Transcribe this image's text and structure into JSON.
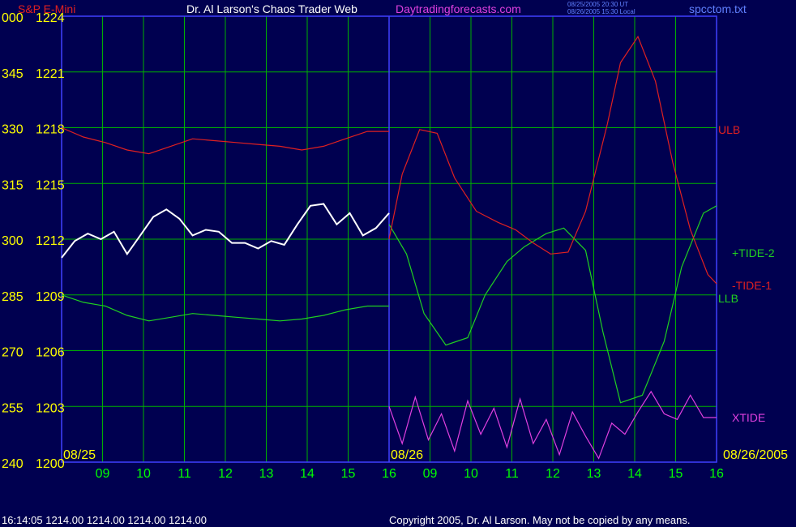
{
  "header": {
    "symbol": "S&P E-Mini",
    "title": "Dr. Al Larson's Chaos Trader Web",
    "site": "Daytradingforecasts.com",
    "time_ut": "08/25/2005 20:30 UT",
    "time_local": "08/26/2005 15:30 Local",
    "file": "spcctom.txt"
  },
  "footer": {
    "quote": "16:14:05  1214.00 1214.00 1214.00 1214.00",
    "copyright": "Copyright 2005, Dr. Al Larson. May not be copied by any means."
  },
  "colors": {
    "background": "#000050",
    "grid": "#00b000",
    "axis_text": "#ffff00",
    "date_text": "#ffff00",
    "hour_text": "#00ff00",
    "ulb": "#e02020",
    "llb": "#20d020",
    "tide_plus": "#20d020",
    "tide_minus": "#e02020",
    "xtide": "#e040e0",
    "price": "#ffffff",
    "separator": "#4040ff"
  },
  "chart_data": {
    "type": "line",
    "title": "S&P E-Mini",
    "y_left_ticks": [
      "000",
      "345",
      "330",
      "315",
      "300",
      "285",
      "270",
      "255",
      "240"
    ],
    "y_price_ticks": [
      "1224",
      "1221",
      "1218",
      "1215",
      "1212",
      "1209",
      "1206",
      "1203",
      "1200"
    ],
    "ylim": [
      1200,
      1224
    ],
    "x_dates": [
      "08/25",
      "08/26",
      "08/26/2005"
    ],
    "x_hours": [
      "09",
      "10",
      "11",
      "12",
      "13",
      "14",
      "15",
      "16",
      "09",
      "10",
      "11",
      "12",
      "13",
      "14",
      "15",
      "16"
    ],
    "x_range": [
      8.5,
      16
    ],
    "series": [
      {
        "name": "ULB",
        "x": [
          8.5,
          9.0,
          9.5,
          10.0,
          10.5,
          11.0,
          11.5,
          12.0,
          12.5,
          13.0,
          13.5,
          14.0,
          14.5,
          15.0,
          15.5,
          16.0
        ],
        "y": [
          1218.0,
          1217.5,
          1217.2,
          1216.8,
          1216.6,
          1217.0,
          1217.4,
          1217.3,
          1217.2,
          1217.1,
          1217.0,
          1216.8,
          1217.0,
          1217.4,
          1217.8,
          1217.8
        ]
      },
      {
        "name": "LLB",
        "x": [
          8.5,
          9.0,
          9.5,
          10.0,
          10.5,
          11.0,
          11.5,
          12.0,
          12.5,
          13.0,
          13.5,
          14.0,
          14.5,
          15.0,
          15.5,
          16.0
        ],
        "y": [
          1209.0,
          1208.6,
          1208.4,
          1207.9,
          1207.6,
          1207.8,
          1208.0,
          1207.9,
          1207.8,
          1207.7,
          1207.6,
          1207.7,
          1207.9,
          1208.2,
          1208.4,
          1208.4
        ]
      },
      {
        "name": "+TIDE-2",
        "x": [
          8.5,
          8.9,
          9.3,
          9.8,
          10.3,
          10.7,
          11.2,
          11.6,
          12.1,
          12.5,
          13.0,
          13.4,
          13.8,
          14.3,
          14.8,
          15.2,
          15.7,
          16.0
        ],
        "y": [
          1212.8,
          1211.2,
          1208.0,
          1206.3,
          1206.7,
          1209.0,
          1210.8,
          1211.6,
          1212.3,
          1212.6,
          1211.4,
          1207.0,
          1203.2,
          1203.6,
          1206.5,
          1210.5,
          1213.4,
          1213.8
        ]
      },
      {
        "name": "-TIDE-1",
        "x": [
          8.5,
          8.8,
          9.2,
          9.6,
          10.0,
          10.5,
          11.0,
          11.4,
          11.8,
          12.2,
          12.6,
          13.0,
          13.5,
          13.8,
          14.2,
          14.6,
          15.0,
          15.4,
          15.8,
          16.0
        ],
        "y": [
          1212.0,
          1215.5,
          1217.9,
          1217.7,
          1215.3,
          1213.5,
          1212.9,
          1212.5,
          1211.8,
          1211.2,
          1211.3,
          1213.5,
          1218.2,
          1221.5,
          1222.9,
          1220.5,
          1216.1,
          1212.5,
          1210.1,
          1209.6
        ]
      },
      {
        "name": "XTIDE",
        "x": [
          8.5,
          8.8,
          9.1,
          9.4,
          9.7,
          10.0,
          10.3,
          10.6,
          10.9,
          11.2,
          11.5,
          11.8,
          12.1,
          12.4,
          12.7,
          13.0,
          13.3,
          13.6,
          13.9,
          14.2,
          14.5,
          14.8,
          15.1,
          15.4,
          15.7,
          16.0
        ],
        "y": [
          1203.0,
          1201.0,
          1203.5,
          1201.2,
          1202.6,
          1200.6,
          1203.3,
          1201.5,
          1202.9,
          1200.8,
          1203.4,
          1201.0,
          1202.3,
          1200.4,
          1202.7,
          1201.4,
          1200.2,
          1202.1,
          1201.5,
          1202.7,
          1203.8,
          1202.6,
          1202.3,
          1203.6,
          1202.4,
          1202.4
        ]
      },
      {
        "name": "Price",
        "x": [
          8.5,
          8.8,
          9.1,
          9.4,
          9.7,
          10.0,
          10.3,
          10.6,
          10.9,
          11.2,
          11.5,
          11.8,
          12.1,
          12.4,
          12.7,
          13.0,
          13.3,
          13.6,
          13.9,
          14.2,
          14.5,
          14.8,
          15.1,
          15.4,
          15.7,
          16.0
        ],
        "y": [
          1211.0,
          1211.9,
          1212.3,
          1212.0,
          1212.4,
          1211.2,
          1212.2,
          1213.2,
          1213.6,
          1213.1,
          1212.2,
          1212.5,
          1212.4,
          1211.8,
          1211.8,
          1211.5,
          1211.9,
          1211.7,
          1212.8,
          1213.8,
          1213.9,
          1212.8,
          1213.4,
          1212.2,
          1212.6,
          1213.4
        ]
      }
    ],
    "series_labels": [
      {
        "text": "ULB",
        "color": "#e02020"
      },
      {
        "text": "+TIDE-2",
        "color": "#20d020"
      },
      {
        "text": "-TIDE-1",
        "color": "#e02020"
      },
      {
        "text": "LLB",
        "color": "#20d020"
      },
      {
        "text": "XTIDE",
        "color": "#e040e0"
      }
    ],
    "grid": true
  }
}
